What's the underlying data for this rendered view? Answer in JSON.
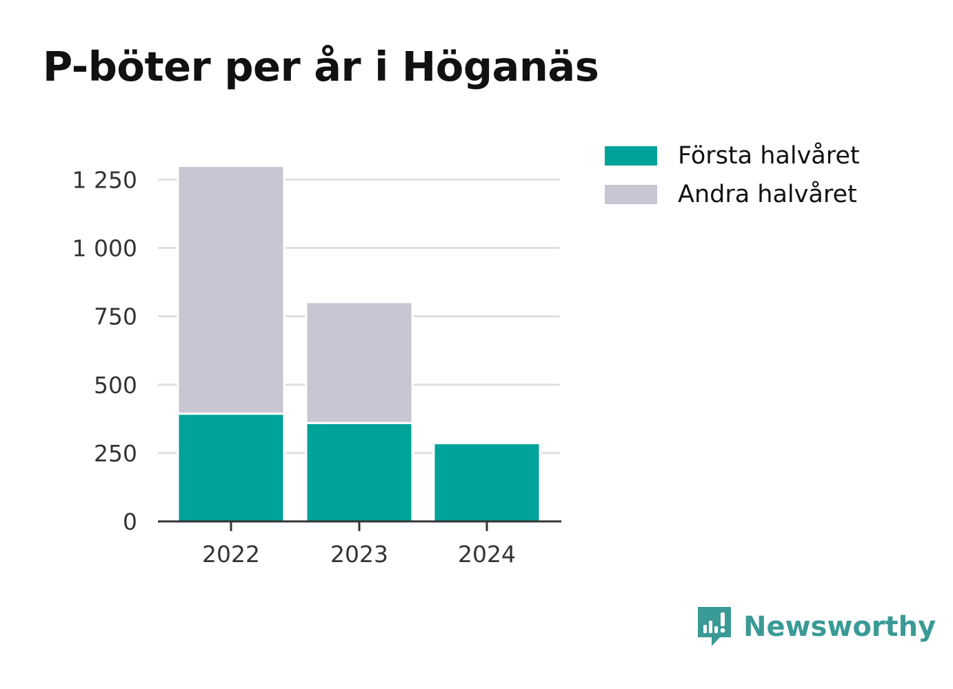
{
  "title": "P-böter per år i Höganäs",
  "colors": {
    "first_half": "#00a29a",
    "second_half": "#c7c6d2",
    "grid": "#e0e0e0",
    "axis": "#333333",
    "brand": "#3a9a96"
  },
  "legend": [
    {
      "label": "Första halvåret",
      "series": "first_half"
    },
    {
      "label": "Andra halvåret",
      "series": "second_half"
    }
  ],
  "brand": {
    "name": "Newsworthy",
    "icon": "newsworthy-logo-icon"
  },
  "chart_data": {
    "type": "bar",
    "stacked": true,
    "title": "P-böter per år i Höganäs",
    "categories": [
      "2022",
      "2023",
      "2024"
    ],
    "series": [
      {
        "name": "Första halvåret",
        "values": [
          394,
          360,
          286
        ]
      },
      {
        "name": "Andra halvåret",
        "values": [
          906,
          442,
          0
        ]
      }
    ],
    "ylim": [
      0,
      1300
    ],
    "yticks": [
      0,
      250,
      500,
      750,
      1000,
      1250
    ],
    "ytick_labels": [
      "0",
      "250",
      "500",
      "750",
      "1 000",
      "1 250"
    ],
    "xlabel": "",
    "ylabel": "",
    "grid": true,
    "legend_position": "top-right"
  }
}
